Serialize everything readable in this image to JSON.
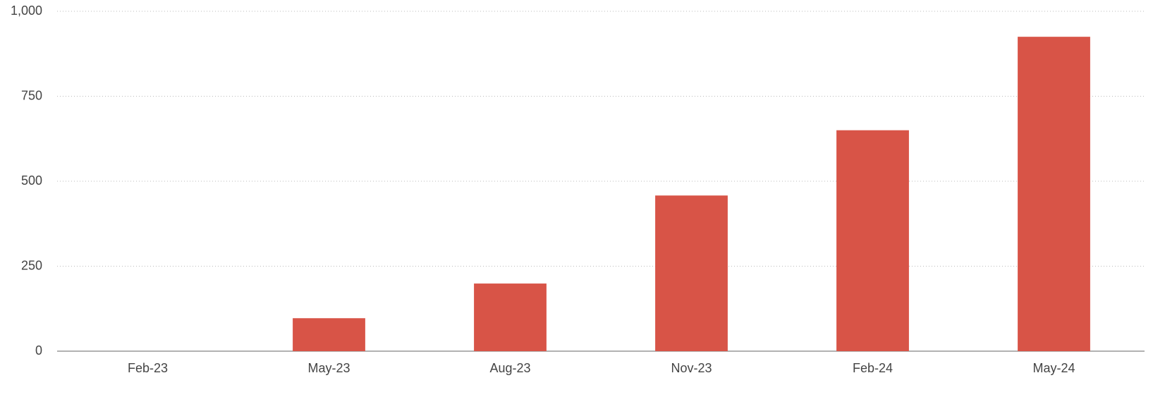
{
  "chart_data": {
    "type": "bar",
    "categories": [
      "Feb-23",
      "May-23",
      "Aug-23",
      "Nov-23",
      "Feb-24",
      "May-24"
    ],
    "values": [
      0,
      97,
      199,
      458,
      650,
      925
    ],
    "color": "#d85447",
    "ylim": [
      0,
      1000
    ],
    "yticks": [
      0,
      250,
      500,
      750,
      {
        "value": 1000,
        "label": "1,000"
      }
    ],
    "grid": true
  }
}
